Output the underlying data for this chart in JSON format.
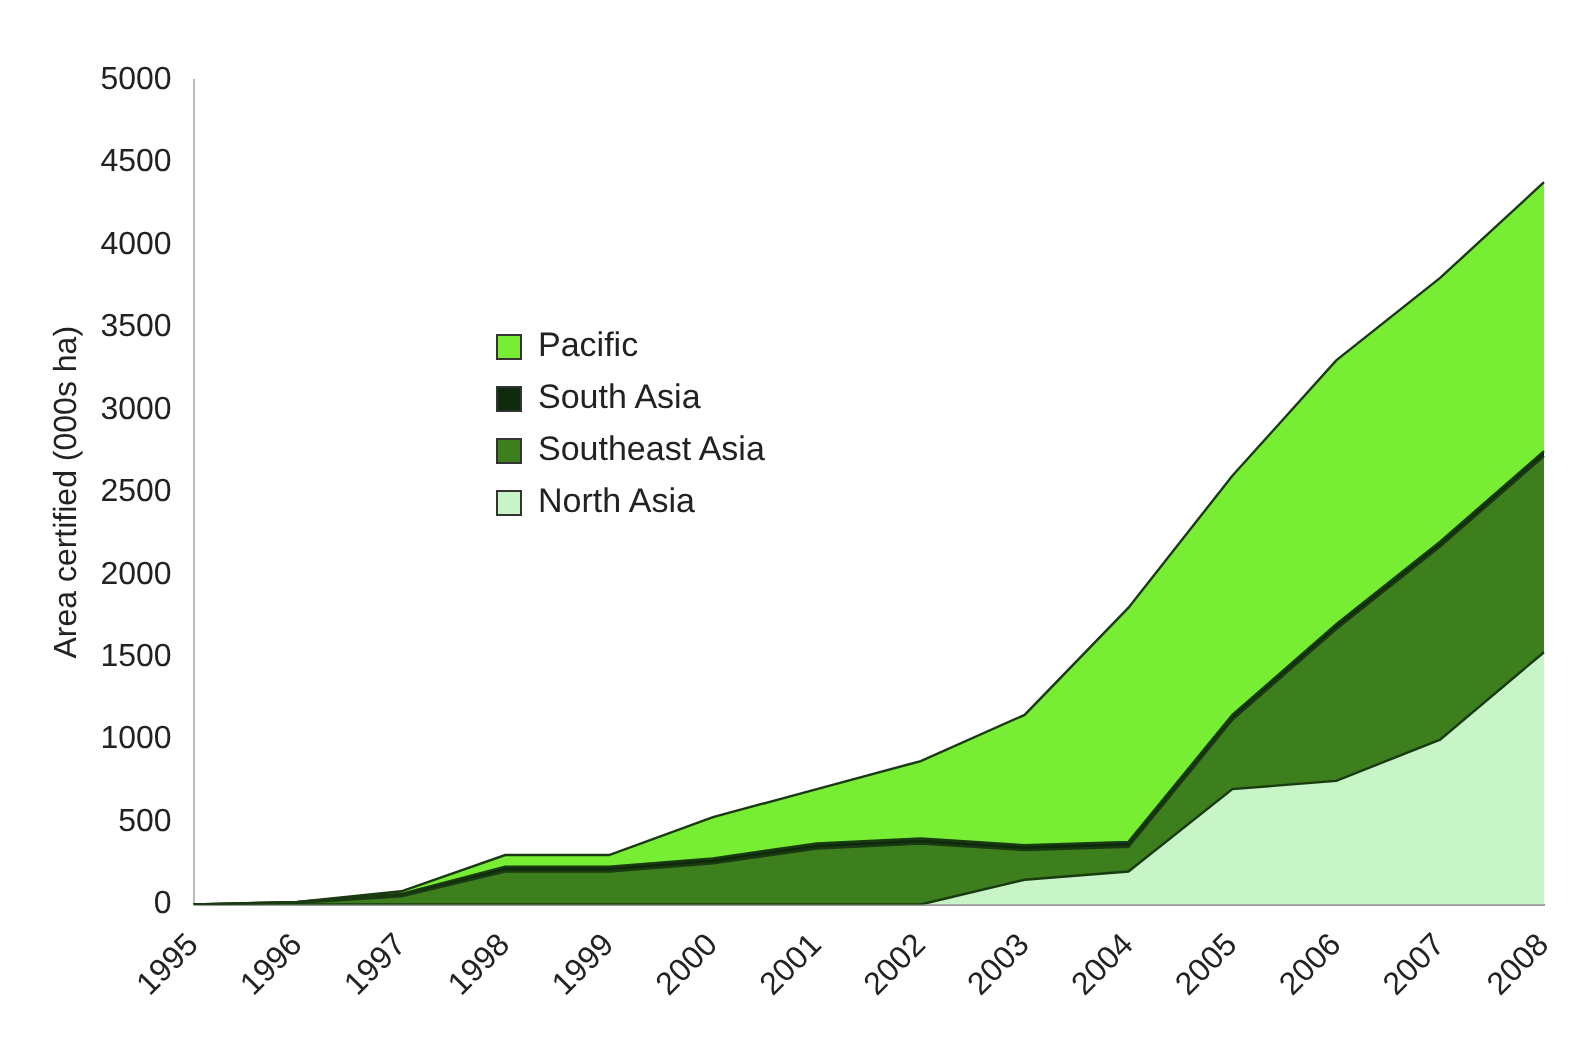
{
  "chart_data": {
    "type": "area",
    "stacked": true,
    "ylabel": "Area certified (000s ha)",
    "categories": [
      "1995",
      "1996",
      "1997",
      "1998",
      "1999",
      "2000",
      "2001",
      "2002",
      "2003",
      "2004",
      "2005",
      "2006",
      "2007",
      "2008"
    ],
    "series": [
      {
        "name": "North Asia",
        "color": "#c8f5c8",
        "values": [
          0,
          0,
          0,
          0,
          0,
          0,
          0,
          0,
          150,
          200,
          700,
          750,
          1000,
          1530
        ]
      },
      {
        "name": "Southeast Asia",
        "color": "#3d7f1c",
        "values": [
          0,
          10,
          50,
          200,
          200,
          250,
          340,
          370,
          180,
          150,
          420,
          920,
          1170,
          1190
        ]
      },
      {
        "name": "South Asia",
        "color": "#0d2a0b",
        "values": [
          0,
          5,
          15,
          30,
          30,
          30,
          30,
          30,
          30,
          30,
          30,
          30,
          30,
          30
        ]
      },
      {
        "name": "Pacific",
        "color": "#77ee33",
        "values": [
          0,
          0,
          15,
          70,
          70,
          250,
          330,
          470,
          790,
          1420,
          1450,
          1600,
          1600,
          1630
        ]
      }
    ],
    "ylim": [
      0,
      5000
    ],
    "yticks": [
      0,
      500,
      1000,
      1500,
      2000,
      2500,
      3000,
      3500,
      4000,
      4500,
      5000
    ],
    "grid": false,
    "legend": "top left"
  }
}
